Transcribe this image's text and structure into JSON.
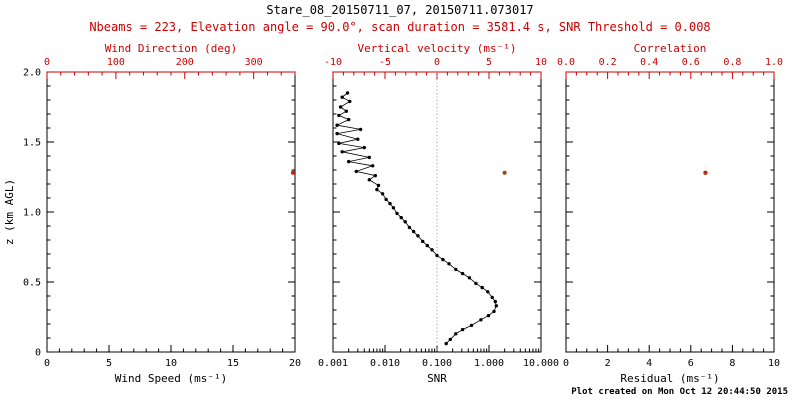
{
  "title": "Stare_08_20150711_07, 20150711.073017",
  "subtitle": "Nbeams = 223, Elevation angle = 90.0°, scan duration = 3581.4 s, SNR Threshold = 0.008",
  "footer": "Plot created on Mon Oct 12 20:44:50 2015",
  "colors": {
    "axis": "#000000",
    "accent": "#cc0000",
    "zero_line": "#dd7766"
  },
  "chart_data": [
    {
      "type": "scatter",
      "name": "wind",
      "y_axis": {
        "label": "z (km AGL)",
        "min": 0,
        "max": 2,
        "ticks": [
          0,
          0.5,
          1,
          1.5,
          2
        ],
        "tick_labels": [
          "0",
          "0.5",
          "1.0",
          "1.5",
          "2.0"
        ],
        "minor_step": 0.1,
        "show_labels": true
      },
      "bottom_axis": {
        "label": "Wind Speed (ms⁻¹)",
        "min": 0,
        "max": 20,
        "ticks": [
          0,
          5,
          10,
          15,
          20
        ],
        "minor_step": 1
      },
      "top_axis": {
        "label": "Wind Direction (deg)",
        "min": 0,
        "max": 360,
        "ticks": [
          0,
          100,
          200,
          300
        ],
        "minor_step": 20
      },
      "series": [
        {
          "name": "wind-direction",
          "axis": "top",
          "color": "#cc2200",
          "points": [
            [
              357,
              1.28
            ]
          ]
        }
      ]
    },
    {
      "type": "scatter",
      "name": "snr-velocity",
      "y_axis": {
        "min": 0,
        "max": 2,
        "ticks": [
          0,
          0.5,
          1,
          1.5,
          2
        ],
        "minor_step": 0.1,
        "show_labels": false
      },
      "bottom_axis": {
        "label": "SNR",
        "scale": "log",
        "min": 0.001,
        "max": 10,
        "ticks": [
          0.001,
          0.01,
          0.1,
          1,
          10
        ],
        "tick_labels": [
          "0.001",
          "0.010",
          "0.100",
          "1.000",
          "10.000"
        ]
      },
      "top_axis": {
        "label": "Vertical velocity (ms⁻¹)",
        "min": -10,
        "max": 10,
        "ticks": [
          -10,
          -5,
          0,
          5,
          10
        ],
        "minor_step": 1
      },
      "zero_line": {
        "axis": "top",
        "value": 0
      },
      "series": [
        {
          "name": "snr-profile",
          "axis": "bottom",
          "color": "#000000",
          "line": true,
          "points": [
            [
              0.0019,
              1.85
            ],
            [
              0.0015,
              1.82
            ],
            [
              0.0021,
              1.79
            ],
            [
              0.0014,
              1.75
            ],
            [
              0.0018,
              1.72
            ],
            [
              0.0013,
              1.69
            ],
            [
              0.002,
              1.66
            ],
            [
              0.0012,
              1.62
            ],
            [
              0.0034,
              1.59
            ],
            [
              0.0012,
              1.56
            ],
            [
              0.003,
              1.52
            ],
            [
              0.0013,
              1.49
            ],
            [
              0.004,
              1.46
            ],
            [
              0.0015,
              1.43
            ],
            [
              0.005,
              1.39
            ],
            [
              0.002,
              1.36
            ],
            [
              0.0058,
              1.33
            ],
            [
              0.0028,
              1.29
            ],
            [
              0.0065,
              1.26
            ],
            [
              0.005,
              1.23
            ],
            [
              0.0075,
              1.19
            ],
            [
              0.007,
              1.16
            ],
            [
              0.009,
              1.13
            ],
            [
              0.0105,
              1.09
            ],
            [
              0.0125,
              1.06
            ],
            [
              0.0145,
              1.03
            ],
            [
              0.017,
              0.99
            ],
            [
              0.0205,
              0.96
            ],
            [
              0.0245,
              0.93
            ],
            [
              0.0295,
              0.89
            ],
            [
              0.0355,
              0.86
            ],
            [
              0.043,
              0.83
            ],
            [
              0.053,
              0.79
            ],
            [
              0.065,
              0.76
            ],
            [
              0.08,
              0.73
            ],
            [
              0.1,
              0.69
            ],
            [
              0.13,
              0.66
            ],
            [
              0.17,
              0.63
            ],
            [
              0.23,
              0.59
            ],
            [
              0.31,
              0.56
            ],
            [
              0.42,
              0.53
            ],
            [
              0.56,
              0.49
            ],
            [
              0.74,
              0.46
            ],
            [
              0.95,
              0.43
            ],
            [
              1.15,
              0.39
            ],
            [
              1.32,
              0.36
            ],
            [
              1.38,
              0.33
            ],
            [
              1.25,
              0.29
            ],
            [
              0.98,
              0.26
            ],
            [
              0.7,
              0.23
            ],
            [
              0.46,
              0.19
            ],
            [
              0.31,
              0.16
            ],
            [
              0.23,
              0.13
            ],
            [
              0.18,
              0.09
            ],
            [
              0.15,
              0.06
            ]
          ]
        },
        {
          "name": "vertical-velocity",
          "axis": "top",
          "color": "#a03c14",
          "points": [
            [
              6.5,
              1.28
            ]
          ]
        }
      ]
    },
    {
      "type": "scatter",
      "name": "residual-correlation",
      "y_axis": {
        "min": 0,
        "max": 2,
        "ticks": [
          0,
          0.5,
          1,
          1.5,
          2
        ],
        "minor_step": 0.1,
        "show_labels": false
      },
      "bottom_axis": {
        "label": "Residual (ms⁻¹)",
        "min": 0,
        "max": 10,
        "ticks": [
          0,
          2,
          4,
          6,
          8,
          10
        ],
        "minor_step": 0.5
      },
      "top_axis": {
        "label": "Correlation",
        "min": 0,
        "max": 1,
        "ticks": [
          0,
          0.2,
          0.4,
          0.6,
          0.8,
          1
        ],
        "tick_labels": [
          "0.0",
          "0.2",
          "0.4",
          "0.6",
          "0.8",
          "1.0"
        ],
        "minor_step": 0.05
      },
      "series": [
        {
          "name": "residual",
          "axis": "bottom",
          "color": "#000000",
          "points": [
            [
              6.7,
              1.28
            ]
          ]
        },
        {
          "name": "correlation",
          "axis": "top",
          "color": "#cc2200",
          "points": [
            [
              0.67,
              1.28
            ]
          ]
        }
      ]
    }
  ]
}
